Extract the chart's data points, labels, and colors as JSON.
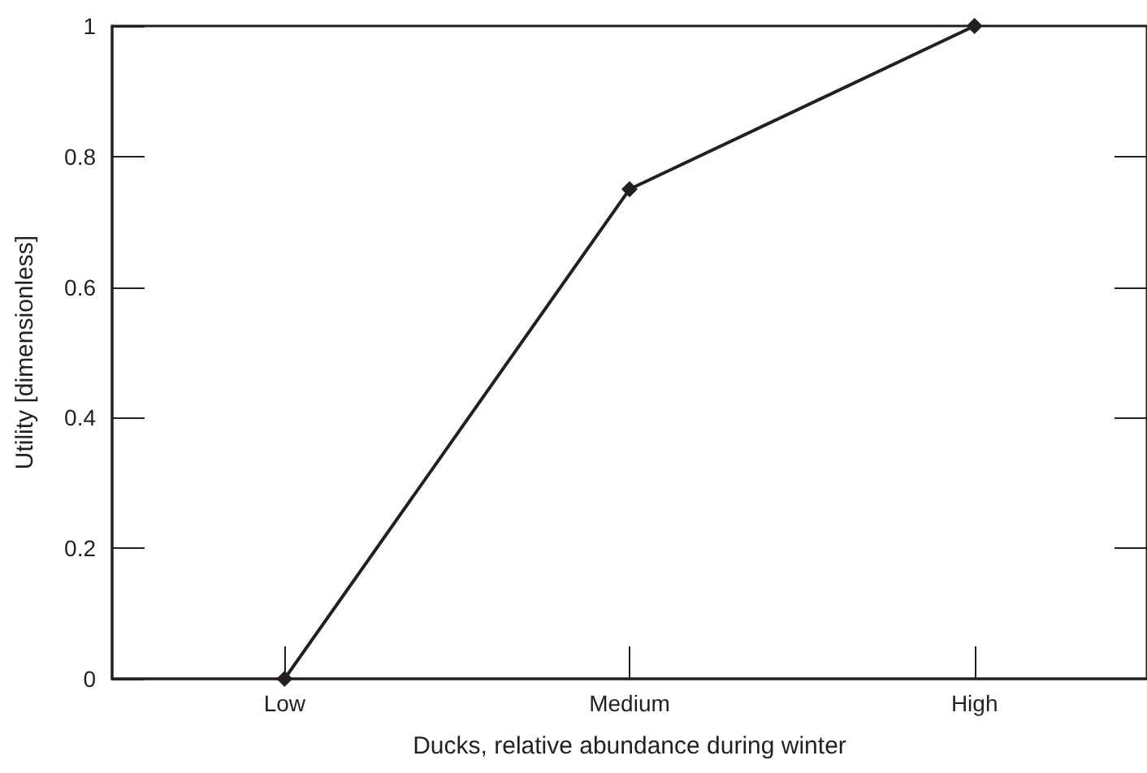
{
  "chart_data": {
    "type": "line",
    "xlabel": "Ducks, relative abundance during winter",
    "ylabel": "Utility [dimensionless]",
    "categories": [
      "Low",
      "Medium",
      "High"
    ],
    "series": [
      {
        "color": "#231f20",
        "values": [
          0,
          0.75,
          1
        ]
      }
    ],
    "ylim": [
      0,
      1
    ],
    "yticks": [
      0,
      0.2,
      0.4,
      0.6,
      0.8,
      1
    ],
    "grid": false,
    "marker": "diamond",
    "line_style": "solid"
  }
}
